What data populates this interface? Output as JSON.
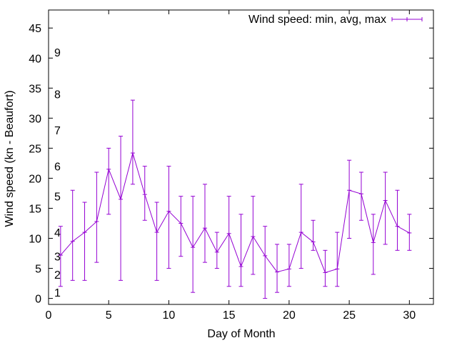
{
  "chart_data": {
    "type": "line",
    "title": "",
    "xlabel": "Day of Month",
    "ylabel": "Wind speed (kn - Beaufort)",
    "xlim": [
      0,
      32
    ],
    "ylim": [
      -1,
      48
    ],
    "x_ticks": [
      0,
      5,
      10,
      15,
      20,
      25,
      30
    ],
    "y_ticks": [
      0,
      5,
      10,
      15,
      20,
      25,
      30,
      35,
      40,
      45
    ],
    "grid": false,
    "legend_position": "top-right",
    "series": [
      {
        "name": "Wind speed: min, avg, max",
        "color": "#9400d3",
        "x": [
          1,
          2,
          3,
          4,
          5,
          6,
          7,
          8,
          9,
          10,
          11,
          12,
          13,
          14,
          15,
          16,
          17,
          18,
          19,
          20,
          21,
          22,
          23,
          24,
          25,
          26,
          27,
          28,
          29,
          30
        ],
        "avg": [
          7.2,
          9.5,
          11,
          12.8,
          21.5,
          16.5,
          24.2,
          17.3,
          11,
          14.5,
          12.5,
          8.5,
          11.7,
          7.7,
          10.8,
          5.3,
          10.3,
          7.1,
          4.4,
          4.9,
          11,
          9.4,
          4.3,
          4.9,
          18,
          17.4,
          9.3,
          16.3,
          12,
          10.9
        ],
        "min": [
          2,
          3,
          3,
          6,
          14,
          3,
          19,
          13,
          3,
          5,
          7,
          1,
          6,
          5,
          2,
          2,
          4,
          0,
          1,
          2,
          5,
          8,
          2,
          2,
          10,
          13,
          4,
          9,
          8,
          8
        ],
        "max": [
          12,
          18,
          16,
          21,
          25,
          27,
          33,
          22,
          16,
          22,
          17,
          17,
          19,
          11,
          17,
          14,
          17,
          12,
          9,
          9,
          19,
          13,
          8,
          11,
          23,
          21,
          14,
          21,
          18,
          14
        ]
      }
    ],
    "beaufort_labels": [
      {
        "label": "1",
        "y": 1
      },
      {
        "label": "2",
        "y": 4
      },
      {
        "label": "3",
        "y": 7
      },
      {
        "label": "4",
        "y": 11
      },
      {
        "label": "5",
        "y": 17
      },
      {
        "label": "6",
        "y": 22
      },
      {
        "label": "7",
        "y": 28
      },
      {
        "label": "8",
        "y": 34
      },
      {
        "label": "9",
        "y": 41
      }
    ]
  }
}
